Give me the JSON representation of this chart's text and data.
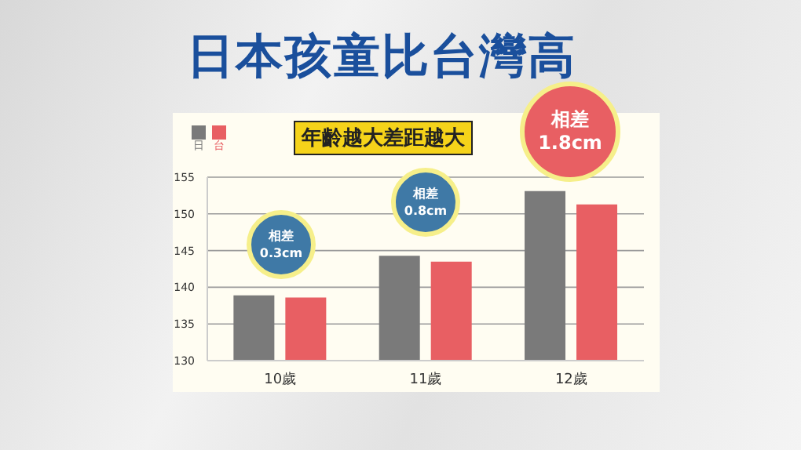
{
  "chart_data": {
    "type": "bar",
    "title": "日本孩童比台灣高",
    "subtitle": "年齡越大差距越大",
    "categories": [
      "10歲",
      "11歲",
      "12歲"
    ],
    "series": [
      {
        "name": "日",
        "color": "#7a7a7a",
        "values": [
          138.9,
          144.3,
          153.1
        ]
      },
      {
        "name": "台",
        "color": "#e85f63",
        "values": [
          138.6,
          143.5,
          151.3
        ]
      }
    ],
    "ylim": [
      130,
      155
    ],
    "yticks": [
      130,
      135,
      140,
      145,
      150,
      155
    ],
    "grid": "y",
    "legend": "top left",
    "annotations": [
      "相差 0.3cm",
      "相差 0.8cm",
      "相差 1.8cm"
    ]
  }
}
